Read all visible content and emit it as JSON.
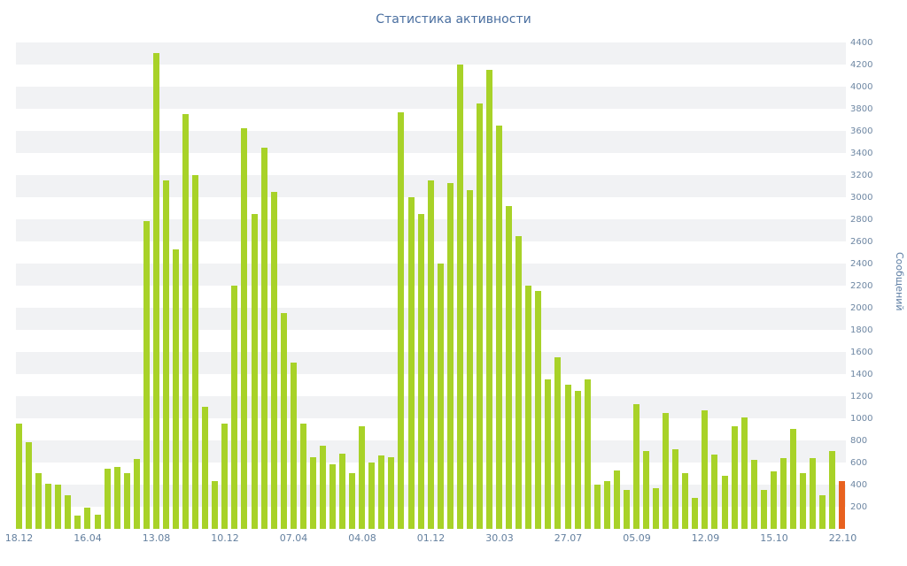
{
  "chart_data": {
    "type": "bar",
    "title": "Статистика активности",
    "ylabel": "Сообщений",
    "xlabel": "",
    "ylim": [
      0,
      4400
    ],
    "ytick_step": 200,
    "yticks": [
      200,
      400,
      600,
      800,
      1000,
      1200,
      1400,
      1600,
      1800,
      2000,
      2200,
      2400,
      2600,
      2800,
      3000,
      3200,
      3400,
      3600,
      3800,
      4000,
      4200,
      4400
    ],
    "grid": "horizontal-stripes",
    "legend": "none",
    "x_labels": [
      "18.12",
      "16.04",
      "13.08",
      "10.12",
      "07.04",
      "04.08",
      "01.12",
      "30.03",
      "27.07",
      "05.09",
      "12.09",
      "15.10",
      "22.10"
    ],
    "label_every": 7,
    "values": [
      950,
      780,
      500,
      410,
      400,
      300,
      120,
      190,
      130,
      540,
      560,
      500,
      630,
      2780,
      4300,
      3150,
      2530,
      3750,
      3200,
      1100,
      430,
      950,
      2200,
      3620,
      2850,
      3450,
      3050,
      1950,
      1500,
      950,
      650,
      750,
      580,
      680,
      500,
      930,
      600,
      660,
      650,
      3770,
      3000,
      2850,
      3150,
      2400,
      3130,
      4200,
      3060,
      3850,
      4150,
      3650,
      2920,
      2650,
      2200,
      2150,
      1350,
      1550,
      1300,
      1250,
      1350,
      400,
      430,
      530,
      350,
      1130,
      700,
      370,
      1050,
      720,
      500,
      280,
      1070,
      670,
      480,
      930,
      1010,
      620,
      350,
      520,
      640,
      900,
      500,
      640,
      300,
      700,
      430
    ],
    "bar_color": "#a8d228",
    "highlight_last_bar_color": "#e8611f",
    "title_color": "#4a6fa0",
    "axis_label_color": "#64809f",
    "stripe_color": "#f1f2f4"
  }
}
